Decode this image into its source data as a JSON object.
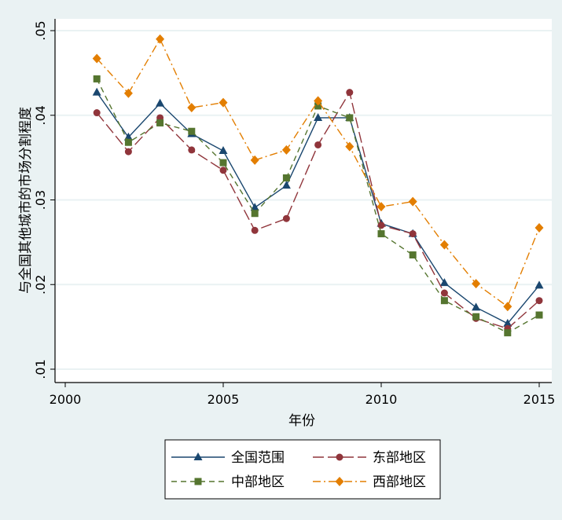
{
  "chart_data": {
    "type": "line",
    "title": "",
    "xlabel": "年份",
    "ylabel": "与全国其他城市的市场分割程度",
    "xlim": [
      2000,
      2015
    ],
    "ylim": [
      0.01,
      0.05
    ],
    "xticks": [
      2000,
      2005,
      2010,
      2015
    ],
    "xtick_labels": [
      "2000",
      "2005",
      "2010",
      "2015"
    ],
    "yticks": [
      0.01,
      0.02,
      0.03,
      0.04,
      0.05
    ],
    "ytick_labels": [
      ".01",
      ".02",
      ".03",
      ".04",
      ".05"
    ],
    "grid": true,
    "legend_position": "bottom",
    "x": [
      2001,
      2002,
      2003,
      2004,
      2005,
      2006,
      2007,
      2008,
      2009,
      2010,
      2011,
      2012,
      2013,
      2014,
      2015
    ],
    "series": [
      {
        "name": "全国范围",
        "color": "#1a476f",
        "marker": "triangle",
        "dash": "solid",
        "values": [
          0.0427,
          0.0374,
          0.0414,
          0.0378,
          0.0358,
          0.0291,
          0.0317,
          0.0397,
          0.0397,
          0.0272,
          0.026,
          0.0202,
          0.0173,
          0.0154,
          0.0199
        ]
      },
      {
        "name": "东部地区",
        "color": "#90353b",
        "marker": "circle",
        "dash": "longdash",
        "values": [
          0.0403,
          0.0357,
          0.0397,
          0.0359,
          0.0335,
          0.0264,
          0.0278,
          0.0365,
          0.0427,
          0.027,
          0.026,
          0.019,
          0.016,
          0.0148,
          0.0181
        ]
      },
      {
        "name": "中部地区",
        "color": "#55752f",
        "marker": "square",
        "dash": "dash",
        "values": [
          0.0443,
          0.0368,
          0.0391,
          0.0381,
          0.0344,
          0.0284,
          0.0326,
          0.0411,
          0.0397,
          0.026,
          0.0235,
          0.0181,
          0.0162,
          0.0143,
          0.0164
        ]
      },
      {
        "name": "西部地区",
        "color": "#e37e00",
        "marker": "diamond",
        "dash": "dashdot",
        "values": [
          0.0467,
          0.0426,
          0.049,
          0.0409,
          0.0415,
          0.0347,
          0.0359,
          0.0417,
          0.0363,
          0.0292,
          0.0298,
          0.0247,
          0.0201,
          0.0174,
          0.0267
        ]
      }
    ]
  }
}
